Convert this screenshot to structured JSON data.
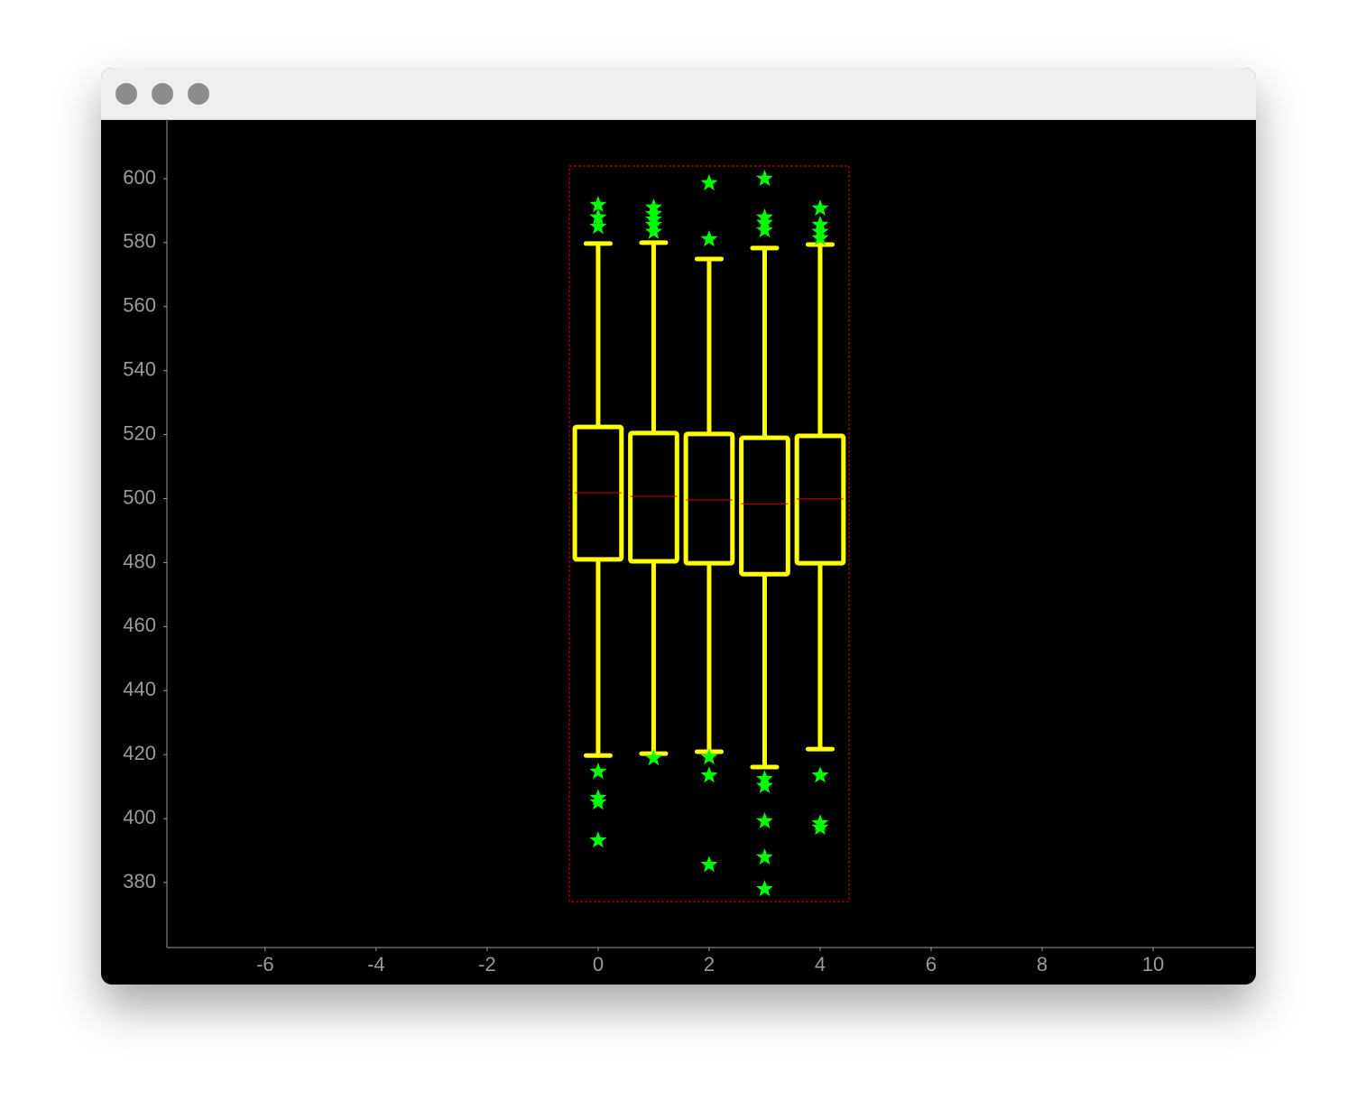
{
  "chart_data": {
    "type": "box",
    "boxes": [
      {
        "x": 0,
        "whisker_low": 419.7,
        "q1": 481.0,
        "median": 501.8,
        "q3": 522.4,
        "whisker_high": 579.7,
        "outliers": [
          591.8,
          587.9,
          585.0,
          414.7,
          406.5,
          405.1,
          393.2
        ]
      },
      {
        "x": 1,
        "whisker_low": 420.3,
        "q1": 480.4,
        "median": 500.7,
        "q3": 520.5,
        "whisker_high": 580.0,
        "outliers": [
          591.0,
          589.0,
          587.3,
          585.6,
          583.4,
          418.9
        ]
      },
      {
        "x": 2,
        "whisker_low": 420.9,
        "q1": 479.8,
        "median": 499.6,
        "q3": 520.2,
        "whisker_high": 574.9,
        "outliers": [
          598.6,
          581.1,
          419.2,
          413.5,
          385.6
        ]
      },
      {
        "x": 3,
        "whisker_low": 416.1,
        "q1": 476.4,
        "median": 498.4,
        "q3": 519.0,
        "whisker_high": 578.3,
        "outliers": [
          600.0,
          587.9,
          586.2,
          583.9,
          412.4,
          410.2,
          399.2,
          387.9,
          378.0
        ]
      },
      {
        "x": 4,
        "whisker_low": 421.7,
        "q1": 479.8,
        "median": 499.9,
        "q3": 519.6,
        "whisker_high": 579.4,
        "outliers": [
          590.7,
          585.6,
          583.4,
          581.4,
          413.5,
          398.6,
          397.2
        ]
      }
    ],
    "box_color": "#ffff00",
    "median_color": "#e00000",
    "outlier_color": "#00ff00",
    "bounds_color": "#e00000",
    "xlim": [
      -7.77,
      11.82
    ],
    "xticks": [
      -6,
      -4,
      -2,
      0,
      2,
      4,
      6,
      8,
      10
    ],
    "ylim": [
      359.7,
      618.6
    ],
    "yticks": [
      380,
      400,
      420,
      440,
      460,
      480,
      500,
      520,
      540,
      560,
      580,
      600
    ]
  }
}
